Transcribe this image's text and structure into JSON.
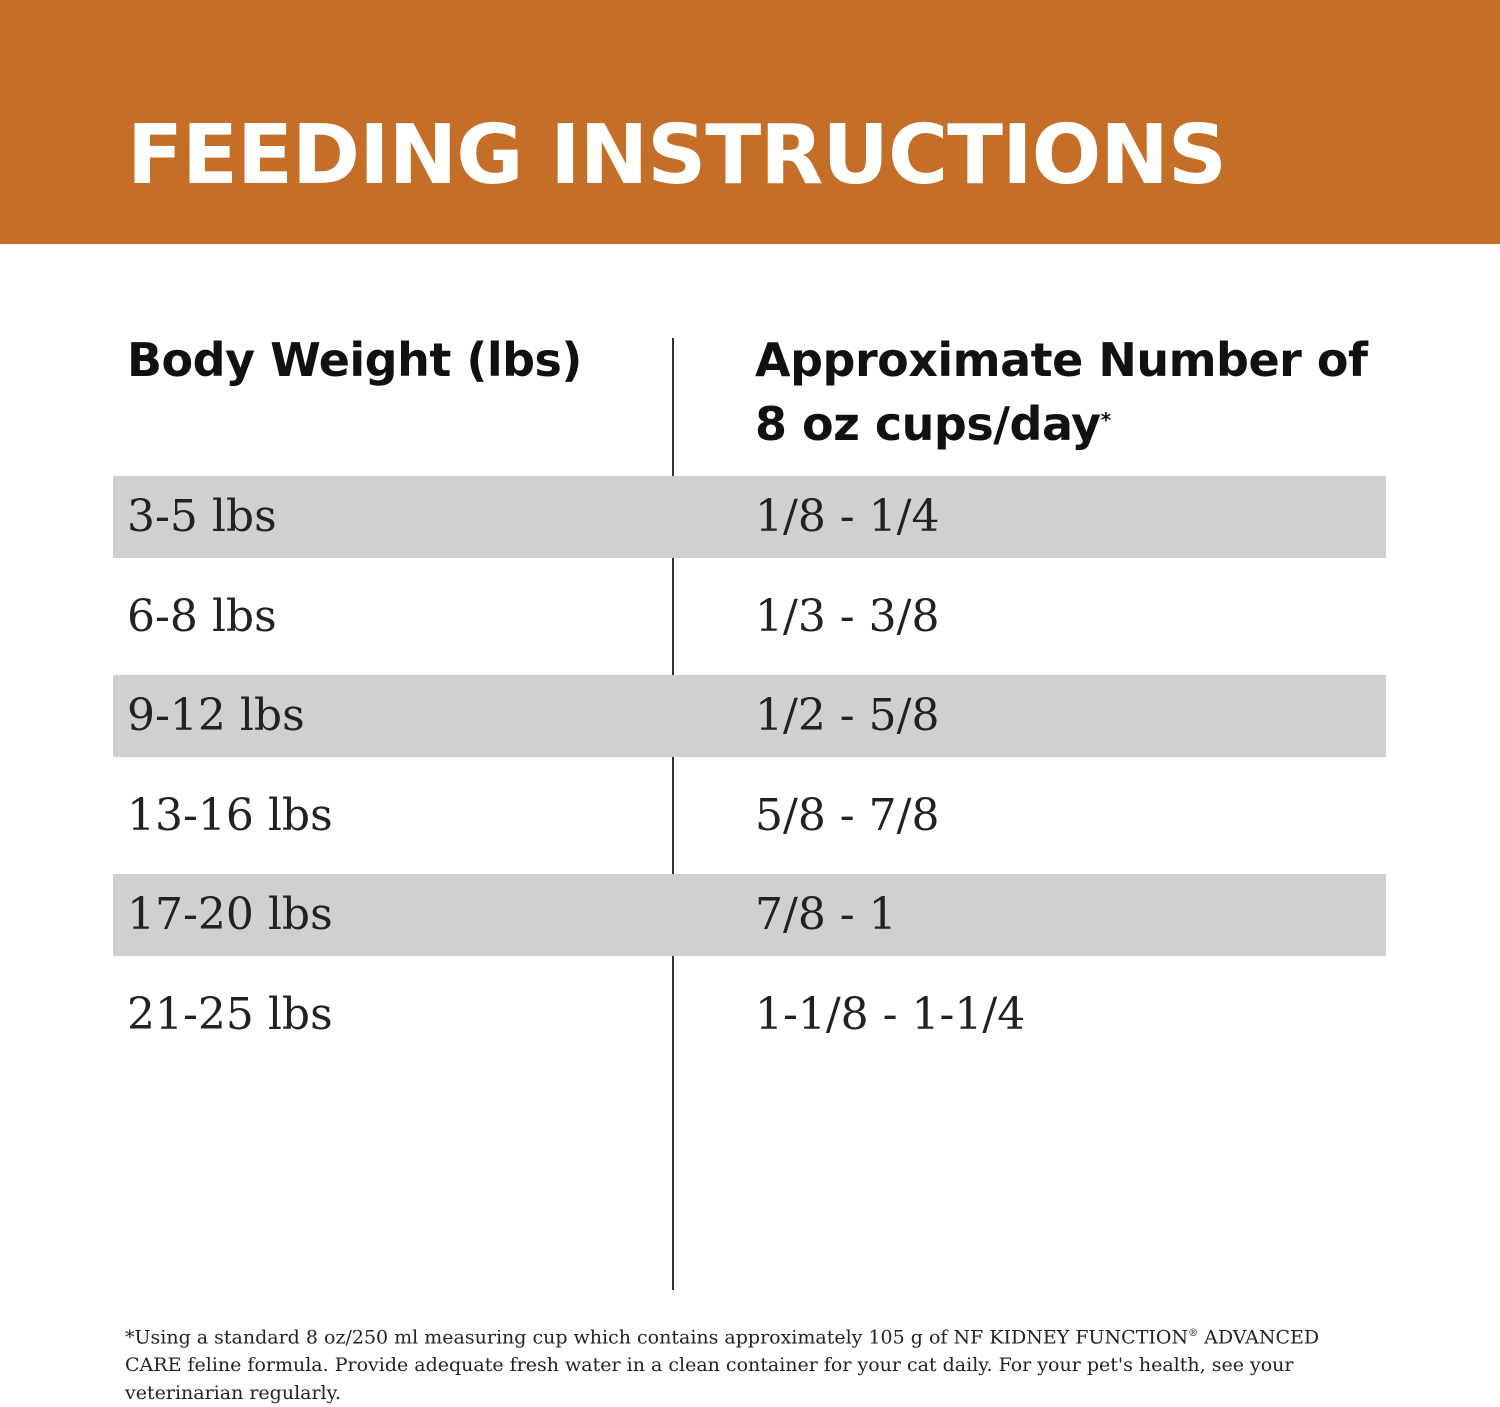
{
  "header": {
    "title": "FEEDING INSTRUCTIONS"
  },
  "table": {
    "headers": [
      "Body Weight (lbs)",
      "Approximate Number of 8 oz cups/day"
    ],
    "header_note_mark": "*",
    "rows": [
      [
        "3-5 lbs",
        "1/8 - 1/4"
      ],
      [
        "6-8 lbs",
        "1/3 - 3/8"
      ],
      [
        "9-12 lbs",
        "1/2 - 5/8"
      ],
      [
        "13-16 lbs",
        "5/8 - 7/8"
      ],
      [
        "17-20 lbs",
        "7/8 - 1"
      ],
      [
        "21-25 lbs",
        "1-1/8 - 1-1/4"
      ]
    ]
  },
  "footnote": {
    "before_mark": "*Using a standard 8 oz/250 ml measuring cup which contains approximately 105 g of NF KIDNEY FUNCTION",
    "mark": "®",
    "after_mark": " ADVANCED CARE feline formula. Provide adequate fresh water in a clean container for your cat daily. For your pet's health, see your veterinarian regularly."
  }
}
